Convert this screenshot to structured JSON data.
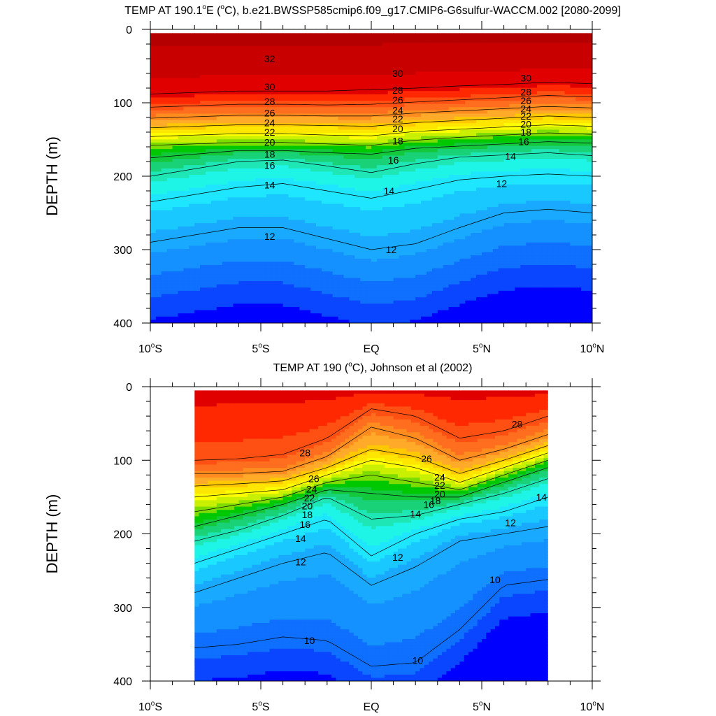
{
  "colors": {
    "scale": [
      "#0000ff",
      "#0a46ff",
      "#0f6fff",
      "#1491ff",
      "#19aaff",
      "#19c8ff",
      "#1ee6ff",
      "#1ef5e6",
      "#1ee6b4",
      "#19d278",
      "#14c83c",
      "#00c800",
      "#7ddc00",
      "#c8f000",
      "#ffff00",
      "#ffe600",
      "#ffc800",
      "#ffaa28",
      "#ff8c1e",
      "#ff6e1e",
      "#ff5014",
      "#ff2800",
      "#e10000",
      "#c80000",
      "#b40000"
    ],
    "lines": "#000000"
  },
  "chart_data": [
    {
      "type": "contour",
      "title": "TEMP AT 190.1ºE (ºC), b.e21.BWSSP585cmip6.f09_g17.CMIP6-G6sulfur-WACCM.002 [2080-2099]",
      "title_parts": {
        "pre": "TEMP AT 190.1",
        "deg": "o",
        "mid": "E (",
        "deg2": "o",
        "post": "C), b.e21.BWSSP585cmip6.f09_g17.CMIP6-G6sulfur-WACCM.002 [2080-2099]"
      },
      "ylabel": "DEPTH (m)",
      "xlim": [
        -10,
        10
      ],
      "ylim": [
        400,
        0
      ],
      "xticks": [
        {
          "v": -10,
          "num": "10",
          "hem": "S"
        },
        {
          "v": -5,
          "num": "5",
          "hem": "S"
        },
        {
          "v": 0,
          "num": "EQ",
          "hem": ""
        },
        {
          "v": 5,
          "num": "5",
          "hem": "N"
        },
        {
          "v": 10,
          "num": "10",
          "hem": "N"
        }
      ],
      "yticks": [
        0,
        100,
        200,
        300,
        400
      ],
      "data_xrange": [
        -10,
        10
      ],
      "data_yrange": [
        5,
        400
      ],
      "x": [
        -10,
        -8,
        -6,
        -4,
        -2,
        0,
        2,
        4,
        6,
        8,
        10
      ],
      "isotherms": [
        {
          "t": 12,
          "d": [
            290,
            280,
            270,
            270,
            285,
            300,
            292,
            270,
            250,
            245,
            250
          ]
        },
        {
          "t": 14,
          "d": [
            235,
            225,
            215,
            210,
            220,
            230,
            218,
            205,
            200,
            197,
            200
          ]
        },
        {
          "t": 16,
          "d": [
            200,
            190,
            180,
            178,
            186,
            195,
            183,
            174,
            171,
            168,
            172
          ]
        },
        {
          "t": 18,
          "d": [
            175,
            170,
            165,
            165,
            168,
            170,
            162,
            159,
            156,
            153,
            155
          ]
        },
        {
          "t": 20,
          "d": [
            158,
            156,
            154,
            154,
            156,
            158,
            151,
            147,
            144,
            141,
            143
          ]
        },
        {
          "t": 22,
          "d": [
            146,
            144,
            142,
            142,
            144,
            145,
            139,
            136,
            133,
            130,
            132
          ]
        },
        {
          "t": 24,
          "d": [
            134,
            132,
            130,
            130,
            131,
            132,
            127,
            124,
            121,
            118,
            120
          ]
        },
        {
          "t": 26,
          "d": [
            121,
            119,
            117,
            117,
            118,
            118,
            114,
            111,
            108,
            105,
            107
          ]
        },
        {
          "t": 28,
          "d": [
            106,
            104,
            102,
            102,
            103,
            102,
            99,
            96,
            93,
            90,
            92
          ]
        },
        {
          "t": 30,
          "d": [
            88,
            86,
            84,
            84,
            84,
            82,
            80,
            77,
            75,
            72,
            74
          ]
        }
      ],
      "labels": [
        {
          "text": "32",
          "x": -4.6,
          "y": 40
        },
        {
          "text": "30",
          "x": -4.6,
          "y": 78
        },
        {
          "text": "28",
          "x": -4.6,
          "y": 98
        },
        {
          "text": "26",
          "x": -4.6,
          "y": 114
        },
        {
          "text": "24",
          "x": -4.6,
          "y": 127
        },
        {
          "text": "22",
          "x": -4.6,
          "y": 140
        },
        {
          "text": "20",
          "x": -4.6,
          "y": 154
        },
        {
          "text": "18",
          "x": -4.6,
          "y": 170
        },
        {
          "text": "16",
          "x": -4.6,
          "y": 185
        },
        {
          "text": "14",
          "x": -4.6,
          "y": 212
        },
        {
          "text": "12",
          "x": -4.6,
          "y": 282
        },
        {
          "text": "30",
          "x": 1.2,
          "y": 60
        },
        {
          "text": "28",
          "x": 1.2,
          "y": 83
        },
        {
          "text": "26",
          "x": 1.2,
          "y": 96
        },
        {
          "text": "24",
          "x": 1.2,
          "y": 110
        },
        {
          "text": "22",
          "x": 1.2,
          "y": 122
        },
        {
          "text": "20",
          "x": 1.2,
          "y": 135
        },
        {
          "text": "18",
          "x": 1.2,
          "y": 152
        },
        {
          "text": "16",
          "x": 1.0,
          "y": 178
        },
        {
          "text": "14",
          "x": 0.8,
          "y": 220
        },
        {
          "text": "12",
          "x": 0.9,
          "y": 300
        },
        {
          "text": "30",
          "x": 7.0,
          "y": 66
        },
        {
          "text": "28",
          "x": 7.0,
          "y": 85
        },
        {
          "text": "26",
          "x": 7.0,
          "y": 97
        },
        {
          "text": "24",
          "x": 7.0,
          "y": 108
        },
        {
          "text": "22",
          "x": 7.0,
          "y": 118
        },
        {
          "text": "20",
          "x": 7.0,
          "y": 129
        },
        {
          "text": "18",
          "x": 7.0,
          "y": 140
        },
        {
          "text": "16",
          "x": 6.9,
          "y": 153
        },
        {
          "text": "14",
          "x": 6.3,
          "y": 173
        },
        {
          "text": "12",
          "x": 5.9,
          "y": 210
        }
      ]
    },
    {
      "type": "contour",
      "title": "TEMP AT 190 (ºC), Johnson et al (2002)",
      "title_parts": {
        "pre": "TEMP AT 190 (",
        "deg": "o",
        "mid": "C), Johnson et al (2002)",
        "deg2": "",
        "post": ""
      },
      "ylabel": "DEPTH (m)",
      "xlim": [
        -10,
        10
      ],
      "ylim": [
        400,
        0
      ],
      "xticks": [
        {
          "v": -10,
          "num": "10",
          "hem": "S"
        },
        {
          "v": -5,
          "num": "5",
          "hem": "S"
        },
        {
          "v": 0,
          "num": "EQ",
          "hem": ""
        },
        {
          "v": 5,
          "num": "5",
          "hem": "N"
        },
        {
          "v": 10,
          "num": "10",
          "hem": "N"
        }
      ],
      "yticks": [
        0,
        100,
        200,
        300,
        400
      ],
      "data_xrange": [
        -8,
        8
      ],
      "data_yrange": [
        5,
        400
      ],
      "x": [
        -8,
        -6,
        -4,
        -2,
        0,
        2,
        4,
        6,
        8
      ],
      "isotherms": [
        {
          "t": 10,
          "d": [
            355,
            350,
            340,
            345,
            380,
            375,
            330,
            270,
            262
          ]
        },
        {
          "t": 12,
          "d": [
            280,
            260,
            240,
            225,
            270,
            245,
            210,
            200,
            190
          ]
        },
        {
          "t": 14,
          "d": [
            240,
            220,
            200,
            180,
            230,
            200,
            180,
            170,
            150
          ]
        },
        {
          "t": 16,
          "d": [
            210,
            195,
            175,
            150,
            180,
            175,
            160,
            145,
            125
          ]
        },
        {
          "t": 18,
          "d": [
            190,
            175,
            160,
            140,
            145,
            150,
            150,
            130,
            110
          ]
        },
        {
          "t": 20,
          "d": [
            170,
            160,
            150,
            130,
            120,
            130,
            140,
            120,
            100
          ]
        },
        {
          "t": 22,
          "d": [
            150,
            145,
            140,
            120,
            100,
            110,
            130,
            110,
            90
          ]
        },
        {
          "t": 24,
          "d": [
            135,
            132,
            128,
            110,
            85,
            95,
            118,
            100,
            80
          ]
        },
        {
          "t": 26,
          "d": [
            118,
            118,
            115,
            95,
            55,
            70,
            100,
            85,
            65
          ]
        },
        {
          "t": 28,
          "d": [
            100,
            98,
            92,
            70,
            30,
            40,
            70,
            60,
            40
          ]
        }
      ],
      "labels": [
        {
          "text": "28",
          "x": -3.0,
          "y": 90
        },
        {
          "text": "26",
          "x": -2.6,
          "y": 125
        },
        {
          "text": "24",
          "x": -2.7,
          "y": 139
        },
        {
          "text": "22",
          "x": -2.8,
          "y": 151
        },
        {
          "text": "20",
          "x": -2.9,
          "y": 162
        },
        {
          "text": "18",
          "x": -2.9,
          "y": 174
        },
        {
          "text": "16",
          "x": -3.0,
          "y": 187
        },
        {
          "text": "14",
          "x": -3.2,
          "y": 206
        },
        {
          "text": "12",
          "x": -3.2,
          "y": 238
        },
        {
          "text": "10",
          "x": -2.8,
          "y": 345
        },
        {
          "text": "26",
          "x": 2.5,
          "y": 98
        },
        {
          "text": "24",
          "x": 3.1,
          "y": 123
        },
        {
          "text": "22",
          "x": 3.1,
          "y": 134
        },
        {
          "text": "20",
          "x": 3.1,
          "y": 146
        },
        {
          "text": "18",
          "x": 2.9,
          "y": 155
        },
        {
          "text": "16",
          "x": 2.6,
          "y": 160
        },
        {
          "text": "14",
          "x": 2.0,
          "y": 173
        },
        {
          "text": "12",
          "x": 1.2,
          "y": 232
        },
        {
          "text": "10",
          "x": 2.1,
          "y": 372
        },
        {
          "text": "28",
          "x": 6.6,
          "y": 51
        },
        {
          "text": "12",
          "x": 6.3,
          "y": 185
        },
        {
          "text": "14",
          "x": 7.7,
          "y": 150
        },
        {
          "text": "10",
          "x": 5.6,
          "y": 262
        }
      ]
    }
  ]
}
